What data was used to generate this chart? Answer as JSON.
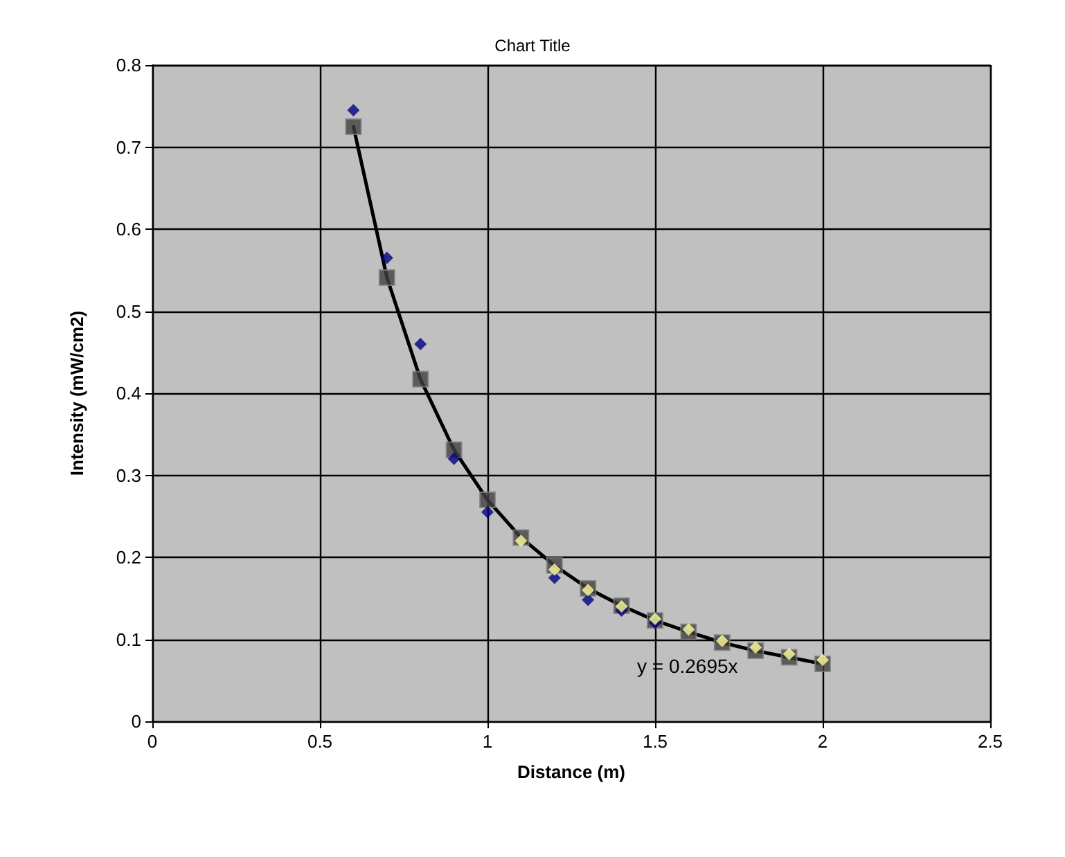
{
  "chart_data": {
    "type": "scatter",
    "title": "Chart Title",
    "xlabel": "Distance (m)",
    "ylabel": "Intensity (mW/cm2)",
    "xlim": [
      0,
      2.5
    ],
    "xticks": [
      0,
      0.5,
      1,
      1.5,
      2,
      2.5
    ],
    "ylim": [
      0,
      0.8
    ],
    "yticks": [
      0,
      0.1,
      0.2,
      0.3,
      0.4,
      0.5,
      0.6,
      0.7,
      0.8
    ],
    "grid": true,
    "annotations": [
      "y = 0.2695x"
    ],
    "series": [
      {
        "type": "line",
        "marker": "none",
        "color": "#000000",
        "x": [
          0.6,
          0.7,
          0.8,
          0.9,
          1.0,
          1.1,
          1.2,
          1.3,
          1.4,
          1.5,
          1.6,
          1.7,
          1.8,
          1.9,
          2.0
        ],
        "values": [
          0.725,
          0.541,
          0.417,
          0.331,
          0.27,
          0.224,
          0.19,
          0.162,
          0.141,
          0.123,
          0.109,
          0.096,
          0.086,
          0.078,
          0.07
        ]
      },
      {
        "marker": "diamond",
        "color": "#000080",
        "x": [
          0.6,
          0.7,
          0.8,
          0.9,
          1.0,
          1.1,
          1.2,
          1.3,
          1.4,
          1.5
        ],
        "values": [
          0.745,
          0.565,
          0.46,
          0.32,
          0.255,
          null,
          0.175,
          0.148,
          0.135,
          0.12
        ]
      },
      {
        "marker": "square",
        "color": "#404040",
        "x": [
          0.6,
          0.7,
          0.8,
          0.9,
          1.0,
          1.1,
          1.2,
          1.3,
          1.4,
          1.5,
          1.6,
          1.7,
          1.8,
          1.9,
          2.0
        ],
        "values": [
          0.725,
          0.541,
          0.417,
          0.331,
          0.27,
          0.224,
          0.19,
          0.162,
          0.141,
          0.123,
          0.109,
          0.096,
          0.086,
          0.078,
          0.07
        ]
      },
      {
        "marker": "diamond",
        "color": "#ffff99",
        "x": [
          1.1,
          1.2,
          1.3,
          1.4,
          1.5,
          1.6,
          1.7,
          1.8,
          1.9,
          2.0
        ],
        "values": [
          0.22,
          0.185,
          0.16,
          0.14,
          0.125,
          0.112,
          0.098,
          0.09,
          0.082,
          0.075
        ]
      }
    ]
  }
}
